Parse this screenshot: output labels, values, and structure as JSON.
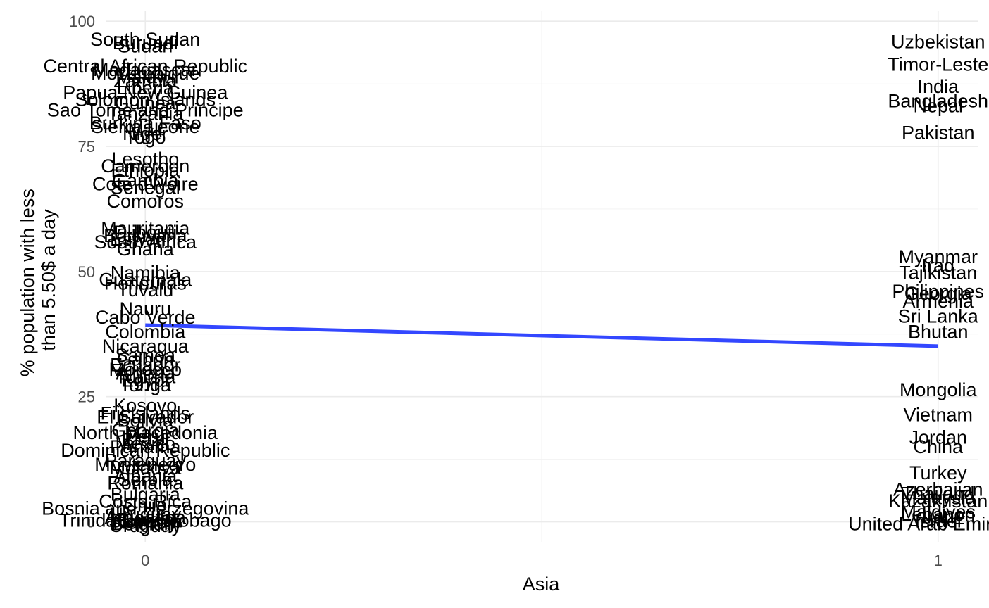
{
  "chart_data": {
    "type": "scatter",
    "title": "",
    "xlabel": "Asia",
    "ylabel": "% population with less than 5.50$ a day",
    "ylabel_lines": [
      "% population with less",
      "than 5.50$ a day"
    ],
    "xlim": [
      -0.05,
      1.05
    ],
    "ylim": [
      -4,
      102
    ],
    "x_ticks": [
      0,
      1
    ],
    "x_tick_labels": [
      "0",
      "1"
    ],
    "y_ticks": [
      0,
      25,
      50,
      75,
      100
    ],
    "y_tick_labels": [
      "0",
      "25",
      "50",
      "75",
      "100"
    ],
    "grid": true,
    "legend": "none",
    "points": [
      {
        "x": 0,
        "y": 96.5,
        "label": "South Sudan"
      },
      {
        "x": 0,
        "y": 95.8,
        "label": "Burundi"
      },
      {
        "x": 0,
        "y": 95.2,
        "label": "Sudan"
      },
      {
        "x": 0,
        "y": 91.2,
        "label": "Central African Republic"
      },
      {
        "x": 0,
        "y": 90.5,
        "label": "Madagascar"
      },
      {
        "x": 0,
        "y": 89.8,
        "label": "Mozambique"
      },
      {
        "x": 0,
        "y": 89.0,
        "label": "Malawi"
      },
      {
        "x": 0,
        "y": 88.2,
        "label": "Zambia"
      },
      {
        "x": 0,
        "y": 86.8,
        "label": "Liberia"
      },
      {
        "x": 0,
        "y": 85.9,
        "label": "Papua New Guinea"
      },
      {
        "x": 0,
        "y": 84.5,
        "label": "Solomon Islands"
      },
      {
        "x": 0,
        "y": 83.8,
        "label": "Guinea"
      },
      {
        "x": 0,
        "y": 82.4,
        "label": "Sao Tome and Principe"
      },
      {
        "x": 0,
        "y": 81.7,
        "label": "Tanzania"
      },
      {
        "x": 0,
        "y": 79.8,
        "label": "Burkina Faso"
      },
      {
        "x": 0,
        "y": 79.1,
        "label": "Sierra Leone"
      },
      {
        "x": 0,
        "y": 78.4,
        "label": "Mali"
      },
      {
        "x": 0,
        "y": 77.7,
        "label": "Niger"
      },
      {
        "x": 0,
        "y": 77.0,
        "label": "Togo"
      },
      {
        "x": 0,
        "y": 72.6,
        "label": "Lesotho"
      },
      {
        "x": 0,
        "y": 71.2,
        "label": "Cameroon"
      },
      {
        "x": 0,
        "y": 70.4,
        "label": "Ethiopia"
      },
      {
        "x": 0,
        "y": 68.3,
        "label": "Gambia"
      },
      {
        "x": 0,
        "y": 67.6,
        "label": "Cote d'Ivoire"
      },
      {
        "x": 0,
        "y": 66.9,
        "label": "Senegal"
      },
      {
        "x": 0,
        "y": 64.2,
        "label": "Comoros"
      },
      {
        "x": 0,
        "y": 58.8,
        "label": "Mauritania"
      },
      {
        "x": 0,
        "y": 58.0,
        "label": "Djibouti"
      },
      {
        "x": 0,
        "y": 57.3,
        "label": "Botswana"
      },
      {
        "x": 0,
        "y": 56.6,
        "label": "Eswatini"
      },
      {
        "x": 0,
        "y": 56.0,
        "label": "South Africa"
      },
      {
        "x": 0,
        "y": 54.6,
        "label": "Ghana"
      },
      {
        "x": 0,
        "y": 49.9,
        "label": "Namibia"
      },
      {
        "x": 0,
        "y": 48.5,
        "label": "Guatemala"
      },
      {
        "x": 0,
        "y": 47.8,
        "label": "Honduras"
      },
      {
        "x": 0,
        "y": 46.5,
        "label": "Tuvalu"
      },
      {
        "x": 0,
        "y": 42.7,
        "label": "Nauru"
      },
      {
        "x": 0,
        "y": 41.0,
        "label": "Cabo Verde"
      },
      {
        "x": 0,
        "y": 38.1,
        "label": "Colombia"
      },
      {
        "x": 0,
        "y": 35.2,
        "label": "Nicaragua"
      },
      {
        "x": 0,
        "y": 33.4,
        "label": "Samoa"
      },
      {
        "x": 0,
        "y": 32.6,
        "label": "Gabon"
      },
      {
        "x": 0,
        "y": 31.5,
        "label": "Ecuador"
      },
      {
        "x": 0,
        "y": 30.6,
        "label": "Morocco"
      },
      {
        "x": 0,
        "y": 29.8,
        "label": "Algeria"
      },
      {
        "x": 0,
        "y": 29.1,
        "label": "Tunisia"
      },
      {
        "x": 0,
        "y": 28.4,
        "label": "Egypt"
      },
      {
        "x": 0,
        "y": 27.5,
        "label": "Tonga"
      },
      {
        "x": 0,
        "y": 23.4,
        "label": "Kosovo"
      },
      {
        "x": 0,
        "y": 21.8,
        "label": "Fiji Islands"
      },
      {
        "x": 0,
        "y": 21.1,
        "label": "El Salvador"
      },
      {
        "x": 0,
        "y": 20.4,
        "label": "Bolivia"
      },
      {
        "x": 0,
        "y": 18.4,
        "label": "Georgia"
      },
      {
        "x": 0,
        "y": 17.9,
        "label": "North Macedonia"
      },
      {
        "x": 0,
        "y": 17.2,
        "label": "Peru"
      },
      {
        "x": 0,
        "y": 16.5,
        "label": "Brazil"
      },
      {
        "x": 0,
        "y": 15.8,
        "label": "Mexico"
      },
      {
        "x": 0,
        "y": 15.1,
        "label": "Panama"
      },
      {
        "x": 0,
        "y": 14.4,
        "label": "Dominican Republic"
      },
      {
        "x": 0,
        "y": 12.4,
        "label": "Paraguay"
      },
      {
        "x": 0,
        "y": 11.6,
        "label": "Montenegro"
      },
      {
        "x": 0,
        "y": 10.9,
        "label": "Moldova"
      },
      {
        "x": 0,
        "y": 9.3,
        "label": "Albania"
      },
      {
        "x": 0,
        "y": 8.6,
        "label": "Serbia"
      },
      {
        "x": 0,
        "y": 7.9,
        "label": "Romania"
      },
      {
        "x": 0,
        "y": 5.6,
        "label": "Bulgaria"
      },
      {
        "x": 0,
        "y": 4.2,
        "label": "Costa Rica"
      },
      {
        "x": 0,
        "y": 3.5,
        "label": "Chile"
      },
      {
        "x": 0,
        "y": 2.8,
        "label": "Bosnia and Herzegovina"
      },
      {
        "x": 0,
        "y": 1.6,
        "label": "Uruguay"
      },
      {
        "x": 0,
        "y": 1.0,
        "label": "Argentina"
      },
      {
        "x": 0,
        "y": 0.6,
        "label": "Russia"
      },
      {
        "x": 0,
        "y": 0.3,
        "label": "Slovenia"
      },
      {
        "x": 0,
        "y": 0.0,
        "label": "Norway"
      },
      {
        "x": 0,
        "y": -0.3,
        "label": "Belgium"
      },
      {
        "x": 0,
        "y": -0.6,
        "label": "Uruguay"
      },
      {
        "x": 0,
        "y": 0.4,
        "label": "Trinidad and Tobago"
      },
      {
        "x": 1,
        "y": 96.0,
        "label": "Uzbekistan"
      },
      {
        "x": 1,
        "y": 91.5,
        "label": "Timor-Leste"
      },
      {
        "x": 1,
        "y": 87.1,
        "label": "India"
      },
      {
        "x": 1,
        "y": 84.2,
        "label": "Bangladesh"
      },
      {
        "x": 1,
        "y": 83.2,
        "label": "Nepal"
      },
      {
        "x": 1,
        "y": 77.9,
        "label": "Pakistan"
      },
      {
        "x": 1,
        "y": 53.1,
        "label": "Myanmar"
      },
      {
        "x": 1,
        "y": 51.3,
        "label": "Iraq"
      },
      {
        "x": 1,
        "y": 49.9,
        "label": "Tajikistan"
      },
      {
        "x": 1,
        "y": 46.2,
        "label": "Philippines"
      },
      {
        "x": 1,
        "y": 45.8,
        "label": "Georgia"
      },
      {
        "x": 1,
        "y": 44.2,
        "label": "Armenia"
      },
      {
        "x": 1,
        "y": 41.2,
        "label": "Sri Lanka"
      },
      {
        "x": 1,
        "y": 38.1,
        "label": "Bhutan"
      },
      {
        "x": 1,
        "y": 26.5,
        "label": "Mongolia"
      },
      {
        "x": 1,
        "y": 21.5,
        "label": "Vietnam"
      },
      {
        "x": 1,
        "y": 17.0,
        "label": "Jordan"
      },
      {
        "x": 1,
        "y": 15.1,
        "label": "China"
      },
      {
        "x": 1,
        "y": 9.9,
        "label": "Turkey"
      },
      {
        "x": 1,
        "y": 6.6,
        "label": "Azerbaijan"
      },
      {
        "x": 1,
        "y": 5.8,
        "label": "Thailand"
      },
      {
        "x": 1,
        "y": 4.9,
        "label": "Malaysia"
      },
      {
        "x": 1,
        "y": 4.3,
        "label": "Kazakhstan"
      },
      {
        "x": 1,
        "y": 2.1,
        "label": "Maldives"
      },
      {
        "x": 1,
        "y": 1.6,
        "label": "Lebanon"
      },
      {
        "x": 1,
        "y": 1.1,
        "label": "Iran"
      },
      {
        "x": 1,
        "y": 0.3,
        "label": "Israel"
      },
      {
        "x": 1,
        "y": -0.3,
        "label": "United Arab Emirates"
      }
    ],
    "fit_line": {
      "x": [
        0,
        1
      ],
      "y": [
        39.3,
        35.1
      ],
      "color": "#3347FF"
    }
  }
}
